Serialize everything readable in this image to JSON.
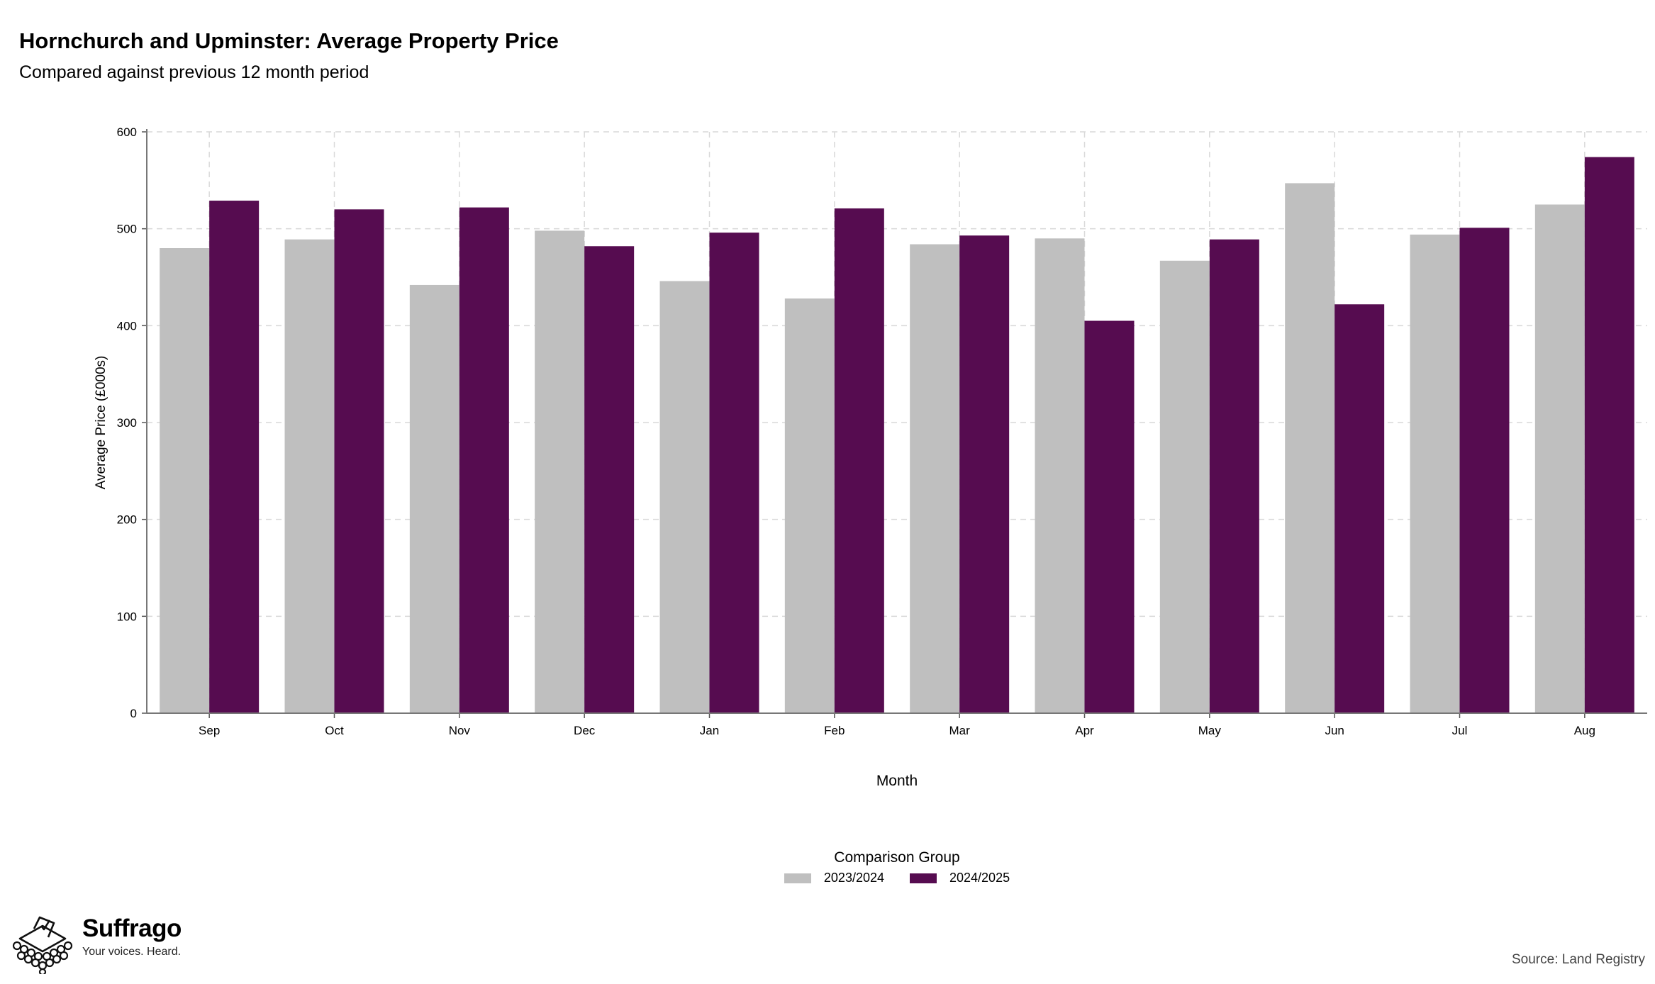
{
  "header": {
    "title": "Hornchurch and Upminster: Average Property Price",
    "subtitle": "Compared against previous 12 month period"
  },
  "chart_data": {
    "type": "bar",
    "categories": [
      "Sep",
      "Oct",
      "Nov",
      "Dec",
      "Jan",
      "Feb",
      "Mar",
      "Apr",
      "May",
      "Jun",
      "Jul",
      "Aug"
    ],
    "series": [
      {
        "name": "2023/2024",
        "color": "#bfbfbf",
        "values": [
          480,
          489,
          442,
          498,
          446,
          428,
          484,
          490,
          467,
          547,
          494,
          525
        ]
      },
      {
        "name": "2024/2025",
        "color": "#560c50",
        "values": [
          529,
          520,
          522,
          482,
          496,
          521,
          493,
          405,
          489,
          422,
          501,
          574
        ]
      }
    ],
    "xlabel": "Month",
    "ylabel": "Average Price (£000s)",
    "ylim": [
      0,
      600
    ],
    "yticks": [
      0,
      100,
      200,
      300,
      400,
      500,
      600
    ],
    "grid": true,
    "legend_title": "Comparison Group",
    "legend_position": "bottom"
  },
  "branding": {
    "logo_name": "Suffrago",
    "logo_tagline": "Your voices. Heard."
  },
  "footer": {
    "source": "Source: Land Registry"
  }
}
